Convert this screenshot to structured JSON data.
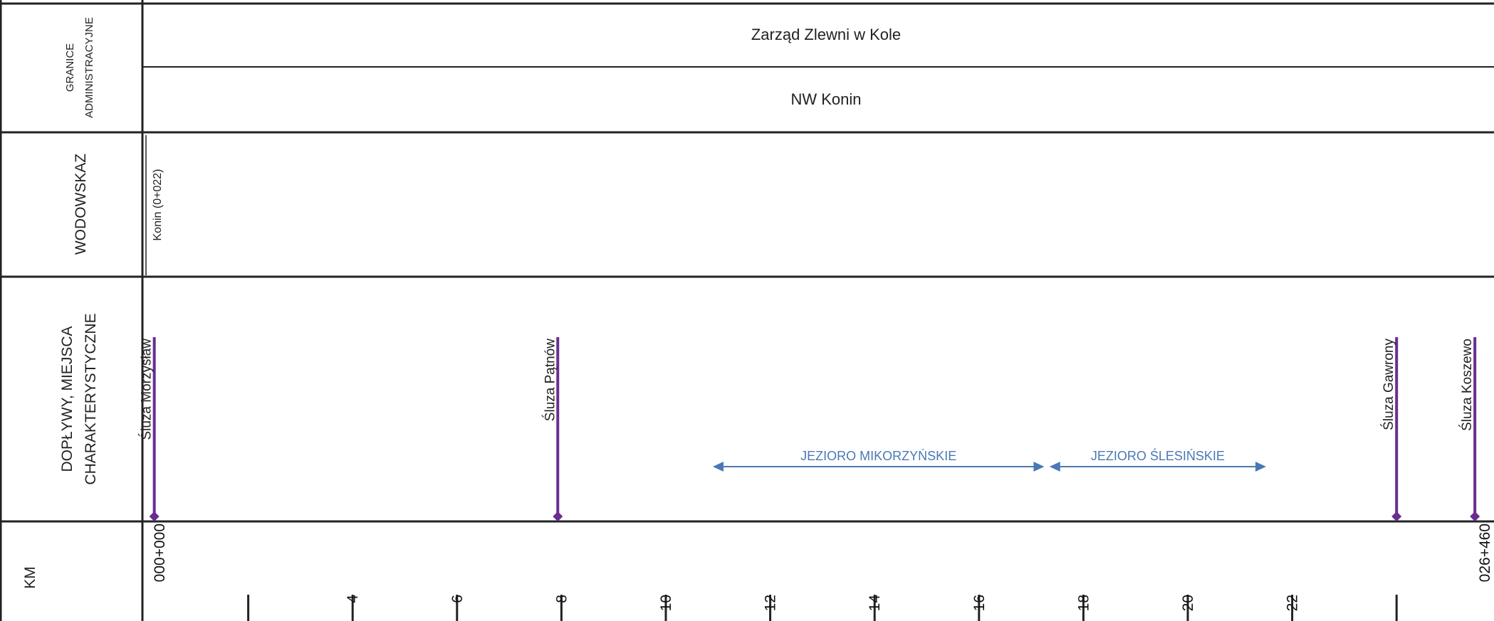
{
  "rows": {
    "admin_header_line1": "GRANICE",
    "admin_header_line2": "ADMINISTRACYJNE",
    "gauge_header": "WODOWSKAZ",
    "tributary_header_line1": "DOPŁYWY, MIEJSCA",
    "tributary_header_line2": "CHARAKTERYSTYCZNE",
    "km_header": "KM"
  },
  "admin": {
    "zarzad": "Zarząd Zlewni w Kole",
    "nadzor": "NW Konin"
  },
  "gauge": {
    "label": "Konin (0+022)"
  },
  "markers": [
    {
      "label": "Śluza Morzysław",
      "km": 0.2
    },
    {
      "label": "Śluza Pątnów",
      "km": 7.93
    },
    {
      "label": "Śluza Gawrony",
      "km": 24.0
    },
    {
      "label": "Śluza Koszewo",
      "km": 25.5
    }
  ],
  "lakes": [
    {
      "label": "JEZIORO MIKORZYŃSKIE",
      "from_km": 10.9,
      "to_km": 17.25
    },
    {
      "label": "JEZIORO ŚLESIŃSKIE",
      "from_km": 17.35,
      "to_km": 21.5
    }
  ],
  "km_axis": {
    "start_label": "000+000",
    "end_label": "026+460",
    "tick_labels": [
      "4",
      "6",
      "8",
      "10",
      "12",
      "14",
      "16",
      "18",
      "20",
      "22"
    ],
    "tick_values": [
      4,
      6,
      8,
      10,
      12,
      14,
      16,
      18,
      20,
      22
    ],
    "unlabeled_ticks": [
      2,
      24
    ]
  },
  "colors": {
    "grid": "#222222",
    "marker": "#6a2d8f",
    "lake": "#4a78b5",
    "text": "#222222"
  }
}
